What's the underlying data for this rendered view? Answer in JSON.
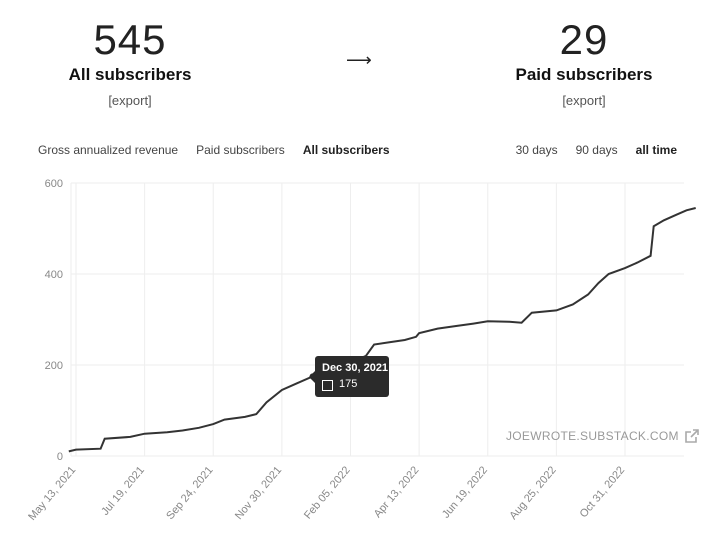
{
  "stats": {
    "left": {
      "number": "545",
      "label": "All subscribers",
      "export": "[export]"
    },
    "arrow": "⟶",
    "right": {
      "number": "29",
      "label": "Paid subscribers",
      "export": "[export]"
    }
  },
  "tabs": {
    "metrics": [
      "Gross annualized revenue",
      "Paid subscribers",
      "All subscribers"
    ],
    "metrics_active": 2,
    "ranges": [
      "30 days",
      "90 days",
      "all time"
    ],
    "ranges_active": 2
  },
  "chart_data": {
    "type": "line",
    "title": "",
    "xlabel": "",
    "ylabel": "",
    "ylim": [
      0,
      600
    ],
    "yticks": [
      "0",
      "200",
      "400",
      "600"
    ],
    "xticks": [
      "May 13, 2021",
      "Jul 19, 2021",
      "Sep 24, 2021",
      "Nov 30, 2021",
      "Feb 05, 2022",
      "Apr 13, 2022",
      "Jun 19, 2022",
      "Aug 25, 2022",
      "Oct 31, 2022"
    ],
    "grid": true,
    "series": [
      {
        "values": [
          [
            "2021-05-06",
            10
          ],
          [
            "2021-05-13",
            14
          ],
          [
            "2021-06-06",
            16
          ],
          [
            "2021-06-10",
            38
          ],
          [
            "2021-07-05",
            42
          ],
          [
            "2021-07-19",
            49
          ],
          [
            "2021-08-10",
            52
          ],
          [
            "2021-08-25",
            56
          ],
          [
            "2021-09-10",
            62
          ],
          [
            "2021-09-24",
            70
          ],
          [
            "2021-10-05",
            80
          ],
          [
            "2021-10-25",
            86
          ],
          [
            "2021-11-05",
            92
          ],
          [
            "2021-11-15",
            118
          ],
          [
            "2021-11-30",
            145
          ],
          [
            "2021-12-15",
            160
          ],
          [
            "2021-12-30",
            175
          ],
          [
            "2022-01-15",
            185
          ],
          [
            "2022-01-30",
            195
          ],
          [
            "2022-02-10",
            210
          ],
          [
            "2022-02-20",
            220
          ],
          [
            "2022-02-28",
            245
          ],
          [
            "2022-03-15",
            250
          ],
          [
            "2022-03-30",
            255
          ],
          [
            "2022-04-10",
            262
          ],
          [
            "2022-04-13",
            270
          ],
          [
            "2022-05-01",
            280
          ],
          [
            "2022-05-20",
            286
          ],
          [
            "2022-06-05",
            291
          ],
          [
            "2022-06-19",
            296
          ],
          [
            "2022-07-10",
            295
          ],
          [
            "2022-07-22",
            293
          ],
          [
            "2022-08-01",
            315
          ],
          [
            "2022-08-25",
            320
          ],
          [
            "2022-09-10",
            333
          ],
          [
            "2022-09-25",
            355
          ],
          [
            "2022-10-05",
            380
          ],
          [
            "2022-10-15",
            400
          ],
          [
            "2022-10-31",
            413
          ],
          [
            "2022-11-12",
            425
          ],
          [
            "2022-11-25",
            440
          ],
          [
            "2022-11-28",
            505
          ],
          [
            "2022-12-08",
            518
          ],
          [
            "2022-12-20",
            530
          ],
          [
            "2022-12-30",
            540
          ],
          [
            "2023-01-08",
            545
          ]
        ]
      }
    ]
  },
  "tooltip": {
    "date": "Dec 30, 2021",
    "value": "175"
  },
  "watermark": "JOEWROTE.SUBSTACK.COM",
  "colors": {
    "line": "#333333",
    "grid": "#eeeeee",
    "tooltip_bg": "#2b2b2b"
  }
}
